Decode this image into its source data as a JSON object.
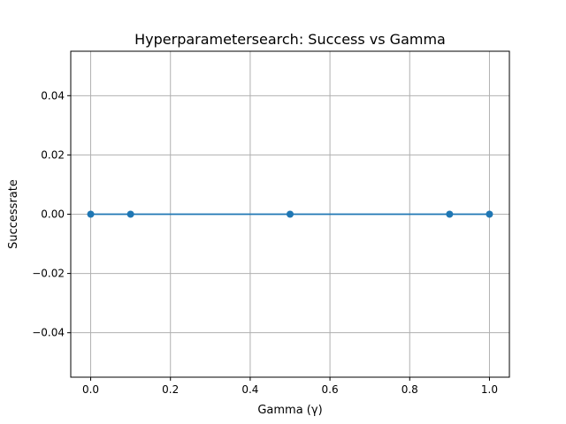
{
  "chart_data": {
    "type": "line",
    "title": "Hyperparametersearch: Success vs Gamma",
    "xlabel": "Gamma (γ)",
    "ylabel": "Successrate",
    "x": [
      0.0,
      0.1,
      0.5,
      0.9,
      1.0
    ],
    "series": [
      {
        "values": [
          0.0,
          0.0,
          0.0,
          0.0,
          0.0
        ],
        "color": "#1f77b4",
        "marker": "circle"
      }
    ],
    "xlim": [
      -0.05,
      1.05
    ],
    "ylim": [
      -0.055,
      0.055
    ],
    "xticks": [
      0.0,
      0.2,
      0.4,
      0.6,
      0.8,
      1.0
    ],
    "xtick_labels": [
      "0.0",
      "0.2",
      "0.4",
      "0.6",
      "0.8",
      "1.0"
    ],
    "yticks": [
      -0.04,
      -0.02,
      0.0,
      0.02,
      0.04
    ],
    "ytick_labels": [
      "−0.04",
      "−0.02",
      "0.00",
      "0.02",
      "0.04"
    ],
    "grid": true
  }
}
